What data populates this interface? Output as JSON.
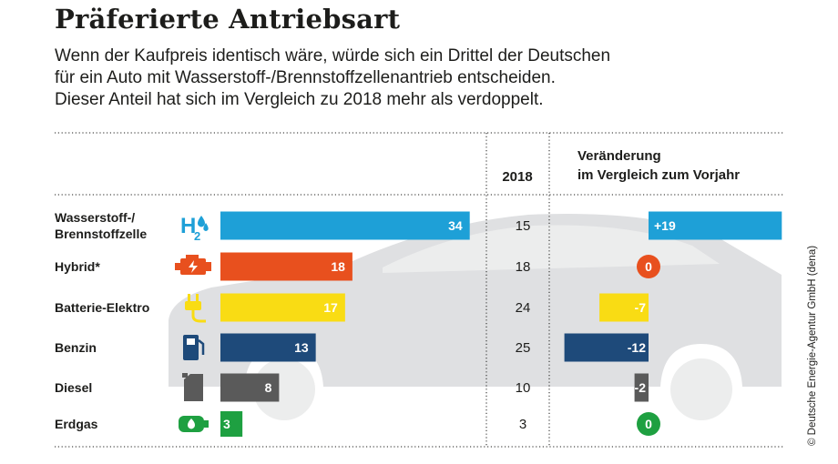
{
  "title": "Präferierte Antriebsart",
  "subtitle_lines": [
    "Wenn der Kaufpreis identisch wäre, würde sich ein Drittel der Deutschen",
    "für ein Auto mit Wasserstoff-/Brennstoffzellenantrieb entscheiden.",
    "Dieser Anteil hat sich im Vergleich zu 2018 mehr als verdoppelt."
  ],
  "credit": "© Deutsche Energie-Agentur GmbH (dena)",
  "icons": [
    "h2-icon",
    "engine-icon",
    "plug-icon",
    "fuel-pump-icon",
    "jerrycan-icon",
    "gas-tank-icon"
  ],
  "chart_data": {
    "type": "bar",
    "orientation": "horizontal",
    "categories": [
      [
        "Wasserstoff-/",
        "Brennstoffzelle"
      ],
      [
        "Hybrid*"
      ],
      [
        "Batterie-Elektro"
      ],
      [
        "Benzin"
      ],
      [
        "Diesel"
      ],
      [
        "Erdgas"
      ]
    ],
    "values": [
      34,
      18,
      17,
      13,
      8,
      3
    ],
    "colors": [
      "#1ea0d7",
      "#e8501e",
      "#f9dc14",
      "#1e4a7a",
      "#5a5a5a",
      "#1ea041"
    ],
    "column_2018": {
      "header": "2018",
      "values": [
        15,
        18,
        24,
        25,
        10,
        3
      ]
    },
    "change": {
      "header_lines": [
        "Veränderung",
        "im Vergleich zum Vorjahr"
      ],
      "values": [
        19,
        0,
        -7,
        -12,
        -2,
        0
      ],
      "labels": [
        "+19",
        "0",
        "-7",
        "-12",
        "-2",
        "0"
      ]
    }
  }
}
